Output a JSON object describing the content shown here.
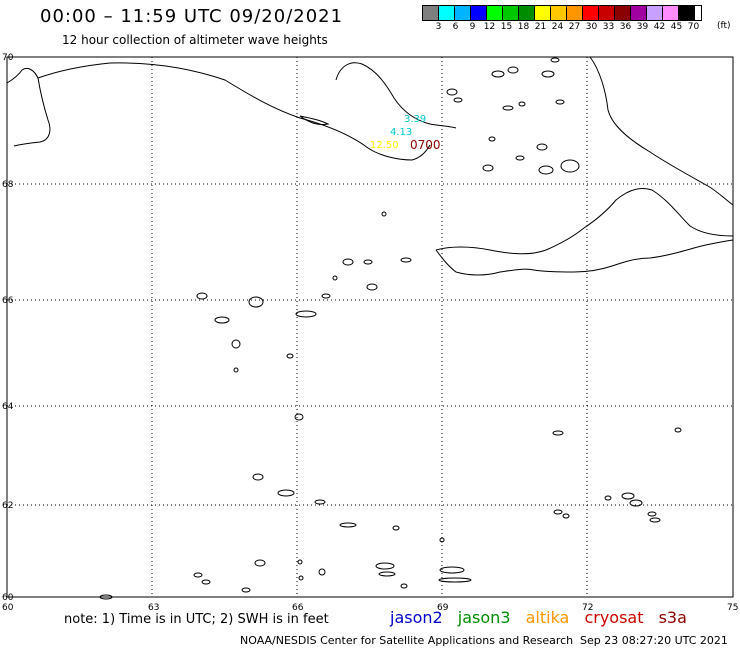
{
  "header": {
    "title": "00:00 – 11:59 UTC 09/20/2021",
    "subtitle": "12 hour collection of altimeter wave heights"
  },
  "scale": {
    "labels": [
      "3",
      "6",
      "9",
      "12",
      "15",
      "18",
      "21",
      "24",
      "27",
      "30",
      "33",
      "36",
      "39",
      "42",
      "45",
      "70"
    ],
    "unit": "(ft)",
    "colors": [
      "#7f7f7f",
      "#00ffff",
      "#00b4ff",
      "#0000ff",
      "#00ff00",
      "#00c800",
      "#008c00",
      "#ffff00",
      "#ffc800",
      "#ff9600",
      "#ff0000",
      "#c80000",
      "#8b0000",
      "#a000a0",
      "#c8a0ff",
      "#ff8cff",
      "#000000"
    ]
  },
  "map": {
    "x_ticks": [
      "60",
      "63",
      "66",
      "69",
      "72",
      "75"
    ],
    "y_ticks": [
      "60",
      "62",
      "64",
      "66",
      "68",
      "70"
    ],
    "observations": [
      {
        "text": "3.39",
        "color": "#00c8c8"
      },
      {
        "text": "4.13",
        "color": "#00c8c8"
      },
      {
        "text": "12.50",
        "color": "#ffff00"
      },
      {
        "text": "0700",
        "color": "#8b0000"
      }
    ]
  },
  "note": "note:  1) Time is in UTC;  2) SWH is in feet",
  "satellites": [
    {
      "name": "jason2",
      "color": "#0000cc"
    },
    {
      "name": "jason3",
      "color": "#008c00"
    },
    {
      "name": "altika",
      "color": "#ff9600"
    },
    {
      "name": "cryosat",
      "color": "#cc0000"
    },
    {
      "name": "s3a",
      "color": "#8b0000"
    }
  ],
  "footer": {
    "credit": "NOAA/NESDIS Center for Satellite Applications and Research",
    "timestamp": "Sep 23 08:27:20 UTC 2021"
  }
}
